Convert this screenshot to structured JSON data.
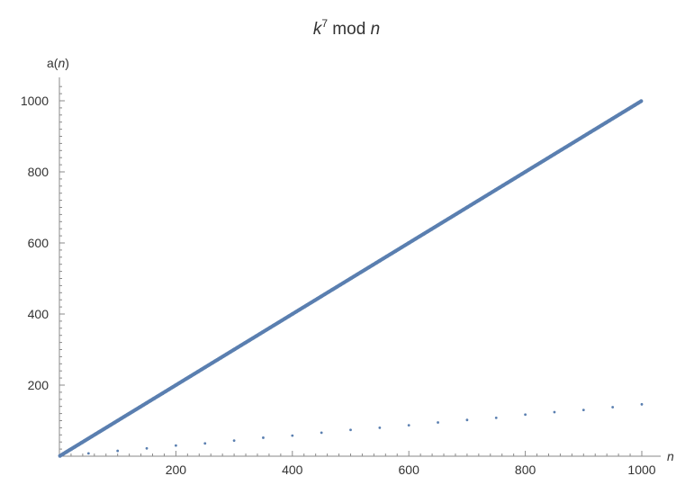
{
  "chart_data": {
    "type": "scatter",
    "title": {
      "base": "k",
      "superscript": "7",
      "rest": " mod ",
      "variable": "n"
    },
    "xlabel": "n",
    "ylabel": {
      "func": "a(",
      "variable": "n",
      "close": ")"
    },
    "xlim": [
      0,
      1000
    ],
    "ylim": [
      0,
      1050
    ],
    "xticks": [
      "200",
      "400",
      "600",
      "800",
      "1000"
    ],
    "yticks": [
      "200",
      "400",
      "600",
      "800",
      "1000"
    ],
    "grid": false,
    "colors": {
      "points": "#5a7fb0",
      "axis": "#8a8a8a",
      "text": "#333333"
    },
    "series": [
      {
        "description": "dense line a(n) = n",
        "x": [
          1,
          100,
          200,
          300,
          400,
          500,
          600,
          700,
          800,
          900,
          1000
        ],
        "y": [
          1,
          100,
          200,
          300,
          400,
          500,
          600,
          700,
          800,
          900,
          1000
        ]
      },
      {
        "description": "sparse points",
        "x": [
          50,
          100,
          150,
          200,
          250,
          300,
          350,
          400,
          450,
          500,
          550,
          600,
          650,
          700,
          750,
          800,
          850,
          900,
          950,
          1000
        ],
        "y": [
          8,
          15,
          22,
          30,
          36,
          44,
          52,
          58,
          66,
          74,
          80,
          87,
          95,
          102,
          108,
          117,
          124,
          130,
          138,
          146
        ]
      }
    ]
  }
}
